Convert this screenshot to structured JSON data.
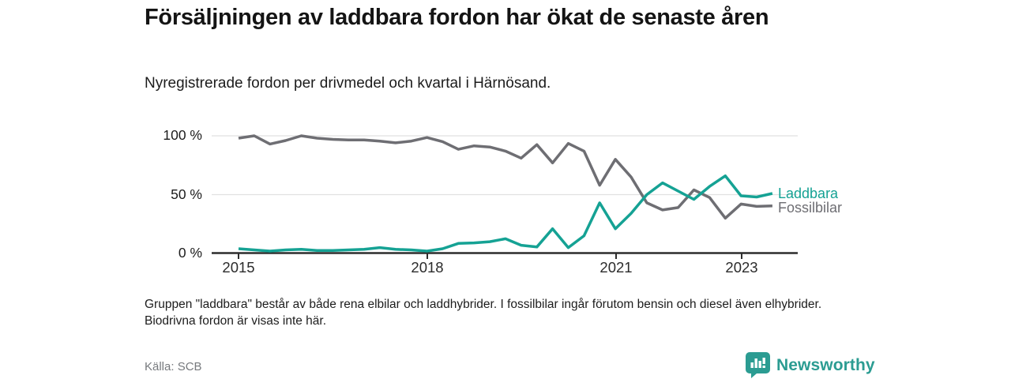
{
  "header": {
    "title": "Försäljningen av laddbara fordon har ökat de senaste åren",
    "subtitle": "Nyregistrerade fordon per drivmedel och kvartal i Härnösand."
  },
  "chart_data": {
    "type": "line",
    "x": [
      "2015Q1",
      "2015Q2",
      "2015Q3",
      "2015Q4",
      "2016Q1",
      "2016Q2",
      "2016Q3",
      "2016Q4",
      "2017Q1",
      "2017Q2",
      "2017Q3",
      "2017Q4",
      "2018Q1",
      "2018Q2",
      "2018Q3",
      "2018Q4",
      "2019Q1",
      "2019Q2",
      "2019Q3",
      "2019Q4",
      "2020Q1",
      "2020Q2",
      "2020Q3",
      "2020Q4",
      "2021Q1",
      "2021Q2",
      "2021Q3",
      "2021Q4",
      "2022Q1",
      "2022Q2",
      "2022Q3",
      "2022Q4",
      "2023Q1",
      "2023Q2",
      "2023Q3"
    ],
    "series": [
      {
        "name": "Laddbara",
        "color": "#15a294",
        "values": [
          4,
          3,
          2,
          3,
          3.5,
          2.5,
          2.5,
          3,
          3.5,
          5,
          3.5,
          3,
          2,
          4,
          8.5,
          9,
          10,
          12.5,
          7,
          5.5,
          21,
          5,
          15,
          43,
          21,
          34,
          50,
          60,
          53,
          46,
          57,
          66,
          49,
          48,
          51
        ]
      },
      {
        "name": "Fossilbilar",
        "color": "#6e6e73",
        "values": [
          98,
          100,
          93,
          96,
          100,
          98,
          97,
          96.5,
          96.5,
          95.5,
          94,
          95.5,
          98.5,
          95,
          88.5,
          91.5,
          90.5,
          87,
          81,
          92.5,
          77,
          93.5,
          87,
          58,
          80,
          65,
          43,
          37,
          39,
          54,
          47.5,
          30,
          42,
          40,
          40.5
        ]
      }
    ],
    "y_tick_labels": [
      "100 %",
      "50 %",
      "0 %"
    ],
    "ylim": [
      0,
      100
    ],
    "x_tick_labels": [
      "2015",
      "2018",
      "2021",
      "2023"
    ],
    "grid": true,
    "legend_position": "end-of-lines",
    "axis_color": "#2d2d2d",
    "grid_color": "#e1e1e1"
  },
  "footnote": {
    "text": "Gruppen \"laddbara\" består av både rena elbilar och laddhybrider. I fossilbilar ingår förutom bensin och diesel även elhybrider. Biodrivna fordon är visas inte här."
  },
  "source": {
    "label": "Källa: SCB"
  },
  "logo": {
    "text": "Newsworthy",
    "color": "#2b9c92"
  }
}
